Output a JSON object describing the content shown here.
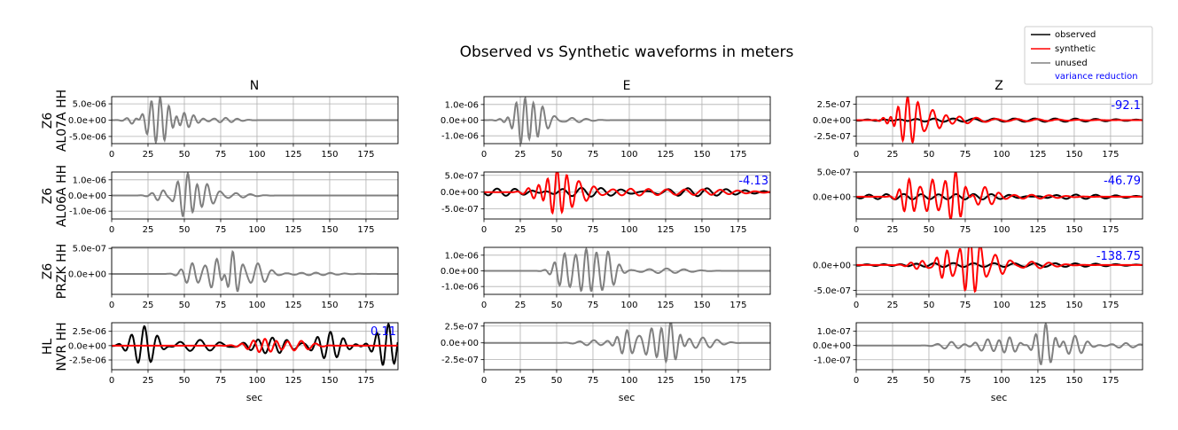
{
  "chart_data": {
    "type": "line",
    "title": "Observed vs Synthetic waveforms in meters",
    "columns": [
      "N",
      "E",
      "Z"
    ],
    "xlabel": "sec",
    "xlim": [
      0,
      197
    ],
    "xticks": [
      0,
      25,
      50,
      75,
      100,
      125,
      150,
      175
    ],
    "legend": {
      "placement": "top-right",
      "entries": [
        {
          "label": "observed",
          "color": "#000000"
        },
        {
          "label": "synthetic",
          "color": "#ff0000"
        },
        {
          "label": "unused",
          "color": "#808080"
        },
        {
          "label": "variance reduction",
          "color": "#0000ff",
          "text_only": true
        }
      ]
    },
    "stations": [
      {
        "label1": "Z6",
        "label2": "AL07A HH"
      },
      {
        "label1": "Z6",
        "label2": "AL06A HH"
      },
      {
        "label1": "Z6",
        "label2": "PRZK HH"
      },
      {
        "label1": "HL",
        "label2": "NVR HH"
      }
    ],
    "panels": [
      {
        "row": 0,
        "col": 0,
        "ylim": [
          -7.2e-06,
          7.2e-06
        ],
        "yticks": [
          -5e-06,
          0,
          5e-06
        ],
        "ytick_labels": [
          "-5.0e-06",
          "0.0e+00",
          "5.0e-06"
        ],
        "vr": "",
        "series": [
          {
            "name": "unused",
            "color": "#808080",
            "amp": 7e-06,
            "packets": [
              [
                18,
                0.25,
                8,
                7
              ],
              [
                33,
                1.0,
                6,
                12
              ],
              [
                49,
                0.35,
                7,
                10
              ],
              [
                78,
                0.1,
                8,
                12
              ]
            ]
          }
        ]
      },
      {
        "row": 0,
        "col": 1,
        "ylim": [
          -1.5e-06,
          1.5e-06
        ],
        "yticks": [
          -1e-06,
          0,
          1e-06
        ],
        "ytick_labels": [
          "-1.0e-06",
          "0.0e+00",
          "1.0e-06"
        ],
        "vr": "",
        "series": [
          {
            "name": "unused",
            "color": "#808080",
            "amp": 1.5e-06,
            "packets": [
              [
                20,
                0.2,
                8,
                6
              ],
              [
                28,
                1.0,
                6,
                10
              ],
              [
                40,
                0.35,
                8,
                10
              ],
              [
                60,
                0.1,
                10,
                14
              ]
            ]
          }
        ]
      },
      {
        "row": 0,
        "col": 2,
        "ylim": [
          -3.7e-07,
          3.7e-07
        ],
        "yticks": [
          -2.5e-07,
          0,
          2.5e-07
        ],
        "ytick_labels": [
          "-2.5e-07",
          "0.0e+00",
          "2.5e-07"
        ],
        "vr": "-92.1",
        "series": [
          {
            "name": "observed",
            "color": "#000000",
            "amp": 3.7e-07,
            "packets": [
              [
                30,
                0.05,
                12,
                30
              ],
              [
                80,
                0.06,
                14,
                60
              ],
              [
                150,
                0.05,
                14,
                45
              ]
            ]
          },
          {
            "name": "synthetic",
            "color": "#ff0000",
            "amp": 3.7e-07,
            "packets": [
              [
                24,
                0.3,
                6,
                6
              ],
              [
                35,
                1.0,
                7,
                9
              ],
              [
                52,
                0.5,
                10,
                12
              ],
              [
                70,
                0.12,
                12,
                18
              ],
              [
                110,
                0.05,
                14,
                40
              ]
            ]
          }
        ]
      },
      {
        "row": 1,
        "col": 0,
        "ylim": [
          -1.5e-06,
          1.5e-06
        ],
        "yticks": [
          -1e-06,
          0,
          1e-06
        ],
        "ytick_labels": [
          "-1.0e-06",
          "0.0e+00",
          "1.0e-06"
        ],
        "vr": "",
        "series": [
          {
            "name": "unused",
            "color": "#808080",
            "amp": 1.5e-06,
            "packets": [
              [
                35,
                0.25,
                8,
                8
              ],
              [
                52,
                1.0,
                7,
                9
              ],
              [
                65,
                0.4,
                9,
                9
              ],
              [
                85,
                0.1,
                10,
                14
              ]
            ]
          }
        ]
      },
      {
        "row": 1,
        "col": 1,
        "ylim": [
          -8e-07,
          6e-07
        ],
        "yticks": [
          -5e-07,
          0,
          5e-07
        ],
        "ytick_labels": [
          "-5.0e-07",
          "0.0e+00",
          "5.0e-07"
        ],
        "vr": "-4.13",
        "series": [
          {
            "name": "observed",
            "color": "#000000",
            "amp": 8e-07,
            "packets": [
              [
                20,
                0.13,
                12,
                40
              ],
              [
                80,
                0.16,
                14,
                50
              ],
              [
                140,
                0.15,
                13,
                45
              ]
            ]
          },
          {
            "name": "synthetic",
            "color": "#ff0000",
            "amp": 8e-07,
            "packets": [
              [
                38,
                0.25,
                8,
                10
              ],
              [
                50,
                1.0,
                7,
                9
              ],
              [
                65,
                0.35,
                10,
                12
              ],
              [
                100,
                0.12,
                12,
                30
              ],
              [
                150,
                0.1,
                12,
                35
              ]
            ]
          }
        ]
      },
      {
        "row": 2,
        "col": 0,
        "ylim": [
          -4e-07,
          5.2e-07
        ],
        "yticks": [
          0,
          5e-07
        ],
        "ytick_labels": [
          "0.0e+00",
          "5.0e-07"
        ],
        "vr": "",
        "series": [
          {
            "name": "unused",
            "color": "#808080",
            "amp": 5.2e-07,
            "packets": [
              [
                55,
                0.4,
                8,
                8
              ],
              [
                72,
                0.6,
                8,
                8
              ],
              [
                83,
                0.9,
                7,
                6
              ],
              [
                100,
                0.4,
                10,
                10
              ],
              [
                140,
                0.05,
                10,
                20
              ]
            ]
          }
        ]
      },
      {
        "row": 1,
        "col": 2,
        "ylim": [
          -4.5e-07,
          5e-07
        ],
        "yticks": [
          0,
          5e-07
        ],
        "ytick_labels": [
          "0.0e+00",
          "5.0e-07"
        ],
        "vr": "-46.79",
        "series": [
          {
            "name": "observed",
            "color": "#000000",
            "amp": 5e-07,
            "packets": [
              [
                20,
                0.08,
                12,
                30
              ],
              [
                80,
                0.1,
                12,
                50
              ],
              [
                150,
                0.08,
                14,
                45
              ]
            ]
          },
          {
            "name": "synthetic",
            "color": "#ff0000",
            "amp": 5e-07,
            "packets": [
              [
                36,
                0.7,
                7,
                7
              ],
              [
                52,
                0.7,
                8,
                8
              ],
              [
                68,
                1.0,
                7,
                8
              ],
              [
                88,
                0.4,
                10,
                10
              ],
              [
                120,
                0.08,
                12,
                25
              ]
            ]
          }
        ]
      },
      {
        "row": 2,
        "col": 1,
        "ylim": [
          -1.5e-06,
          1.5e-06
        ],
        "yticks": [
          -1e-06,
          0,
          1e-06
        ],
        "ytick_labels": [
          "-1.0e-06",
          "0.0e+00",
          "1.0e-06"
        ],
        "vr": "",
        "series": [
          {
            "name": "unused",
            "color": "#808080",
            "amp": 1.5e-06,
            "packets": [
              [
                55,
                0.7,
                7,
                8
              ],
              [
                70,
                0.9,
                7,
                9
              ],
              [
                85,
                0.8,
                8,
                8
              ],
              [
                125,
                0.1,
                12,
                20
              ]
            ]
          }
        ]
      },
      {
        "row": 2,
        "col": 2,
        "ylim": [
          -5.8e-07,
          3.5e-07
        ],
        "yticks": [
          -5e-07,
          0
        ],
        "ytick_labels": [
          "-5.0e-07",
          "0.0e+00"
        ],
        "vr": "-138.75",
        "series": [
          {
            "name": "observed",
            "color": "#000000",
            "amp": 5.8e-07,
            "packets": [
              [
                30,
                0.05,
                12,
                30
              ],
              [
                80,
                0.06,
                14,
                50
              ],
              [
                150,
                0.05,
                14,
                40
              ]
            ]
          },
          {
            "name": "synthetic",
            "color": "#ff0000",
            "amp": 5.8e-07,
            "packets": [
              [
                45,
                0.15,
                8,
                10
              ],
              [
                62,
                0.5,
                7,
                8
              ],
              [
                78,
                1.0,
                7,
                9
              ],
              [
                95,
                0.35,
                10,
                12
              ],
              [
                120,
                0.12,
                12,
                20
              ]
            ]
          }
        ]
      },
      {
        "row": 3,
        "col": 0,
        "ylim": [
          -4.2e-06,
          4e-06
        ],
        "yticks": [
          -2.5e-06,
          0,
          2.5e-06
        ],
        "ytick_labels": [
          "-2.5e-06",
          "0.0e+00",
          "2.5e-06"
        ],
        "vr": "0.11",
        "series": [
          {
            "name": "observed",
            "color": "#000000",
            "amp": 4e-06,
            "packets": [
              [
                22,
                0.85,
                9,
                11
              ],
              [
                60,
                0.25,
                14,
                20
              ],
              [
                110,
                0.35,
                10,
                18
              ],
              [
                150,
                0.6,
                9,
                12
              ],
              [
                190,
                0.95,
                8,
                10
              ]
            ]
          },
          {
            "name": "synthetic",
            "color": "#ff0000",
            "amp": 4e-06,
            "packets": [
              [
                105,
                0.3,
                8,
                14
              ],
              [
                130,
                0.2,
                10,
                12
              ]
            ]
          }
        ]
      },
      {
        "row": 3,
        "col": 1,
        "ylim": [
          -4e-07,
          3e-07
        ],
        "yticks": [
          -2.5e-07,
          0,
          2.5e-07
        ],
        "ytick_labels": [
          "-2.5e-07",
          "0.0e+00",
          "2.5e-07"
        ],
        "vr": "",
        "series": [
          {
            "name": "unused",
            "color": "#808080",
            "amp": 4e-07,
            "packets": [
              [
                75,
                0.1,
                10,
                12
              ],
              [
                98,
                0.45,
                7,
                8
              ],
              [
                115,
                0.5,
                8,
                10
              ],
              [
                128,
                0.85,
                7,
                8
              ],
              [
                150,
                0.2,
                10,
                14
              ]
            ]
          }
        ]
      },
      {
        "row": 3,
        "col": 2,
        "ylim": [
          -1.7e-07,
          1.6e-07
        ],
        "yticks": [
          -1e-07,
          0,
          1e-07
        ],
        "ytick_labels": [
          "-1.0e-07",
          "0.0e+00",
          "1.0e-07"
        ],
        "vr": "",
        "series": [
          {
            "name": "unused",
            "color": "#808080",
            "amp": 1.7e-07,
            "packets": [
              [
                65,
                0.15,
                10,
                10
              ],
              [
                90,
                0.25,
                9,
                10
              ],
              [
                105,
                0.35,
                8,
                8
              ],
              [
                130,
                0.9,
                7,
                8
              ],
              [
                150,
                0.4,
                9,
                10
              ],
              [
                185,
                0.1,
                10,
                12
              ]
            ]
          }
        ]
      }
    ]
  }
}
